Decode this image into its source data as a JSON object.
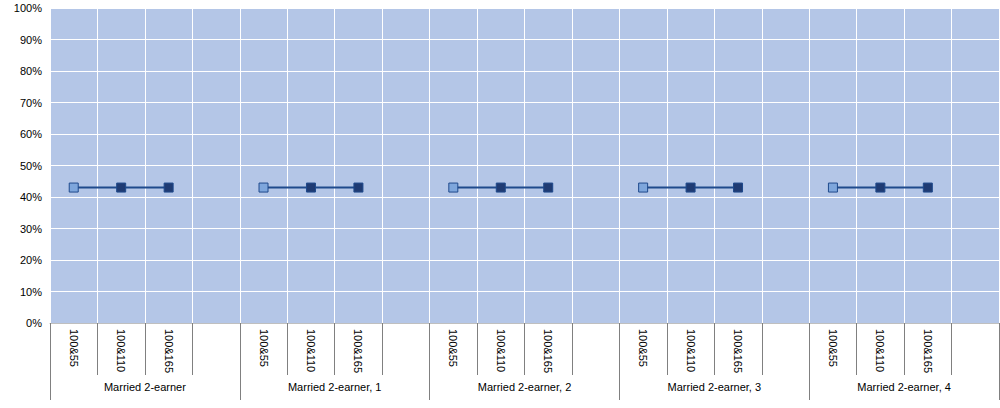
{
  "chart_data": {
    "type": "line",
    "categories": [
      "100&55",
      "100&110",
      "100&165",
      null,
      "100&55",
      "100&110",
      "100&165",
      null,
      "100&55",
      "100&110",
      "100&165",
      null,
      "100&55",
      "100&110",
      "100&165",
      null,
      "100&55",
      "100&110",
      "100&165",
      null
    ],
    "groups": [
      "Married 2-earner",
      "Married 2-earner, 1",
      "Married 2-earner, 2",
      "Married 2-earner, 3",
      "Married 2-earner, 4"
    ],
    "values": [
      43,
      43,
      43,
      null,
      43,
      43,
      43,
      null,
      43,
      43,
      43,
      null,
      43,
      43,
      43,
      null,
      43,
      43,
      43,
      null
    ],
    "colors": [
      "#7ea6dc",
      "#1f3b73",
      "#1f3b73",
      null,
      "#7ea6dc",
      "#1f3b73",
      "#1f3b73",
      null,
      "#7ea6dc",
      "#1f3b73",
      "#1f3b73",
      null,
      "#7ea6dc",
      "#1f3b73",
      "#1f3b73",
      null,
      "#7ea6dc",
      "#1f3b73",
      "#1f3b73",
      null
    ],
    "color": "#1f4a8c",
    "marker": "square",
    "ylim": [
      0,
      100
    ],
    "yticks": [
      {
        "value": 0,
        "label": "0%"
      },
      {
        "value": 10,
        "label": "10%"
      },
      {
        "value": 20,
        "label": "20%"
      },
      {
        "value": 30,
        "label": "30%"
      },
      {
        "value": 40,
        "label": "40%"
      },
      {
        "value": 50,
        "label": "50%"
      },
      {
        "value": 60,
        "label": "60%"
      },
      {
        "value": 70,
        "label": "70%"
      },
      {
        "value": 80,
        "label": "80%"
      },
      {
        "value": 90,
        "label": "90%"
      },
      {
        "value": 100,
        "label": "100%"
      }
    ],
    "grid": true
  }
}
